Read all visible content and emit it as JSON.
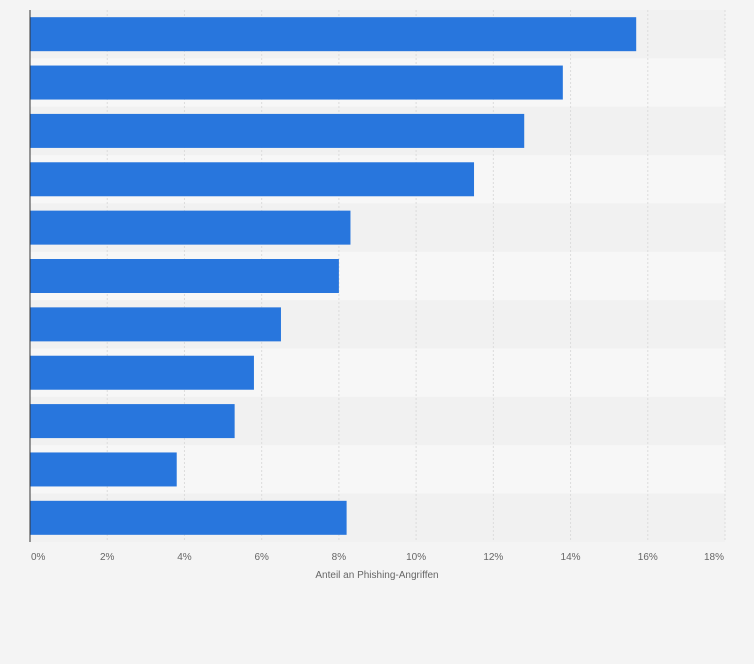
{
  "chart_data": {
    "type": "bar",
    "orientation": "horizontal",
    "categories": [
      "",
      "",
      "",
      "",
      "",
      "",
      "",
      "",
      "",
      "",
      ""
    ],
    "values": [
      15.7,
      13.8,
      12.8,
      11.5,
      8.3,
      8.0,
      6.5,
      5.8,
      5.3,
      3.8,
      8.2
    ],
    "xlabel": "Anteil an Phishing-Angriffen",
    "ylabel": "",
    "xlim": [
      0,
      18
    ],
    "xticks": [
      "0%",
      "2%",
      "4%",
      "6%",
      "8%",
      "10%",
      "12%",
      "14%",
      "16%",
      "18%"
    ],
    "grid": "vertical",
    "legend": "none",
    "colors": {
      "bar": "#2876dd",
      "band_dark": "#f1f1f1",
      "band_light": "#f7f7f7",
      "grid": "#dcdcdc",
      "axis": "#333333",
      "tick_text": "#666666"
    }
  }
}
